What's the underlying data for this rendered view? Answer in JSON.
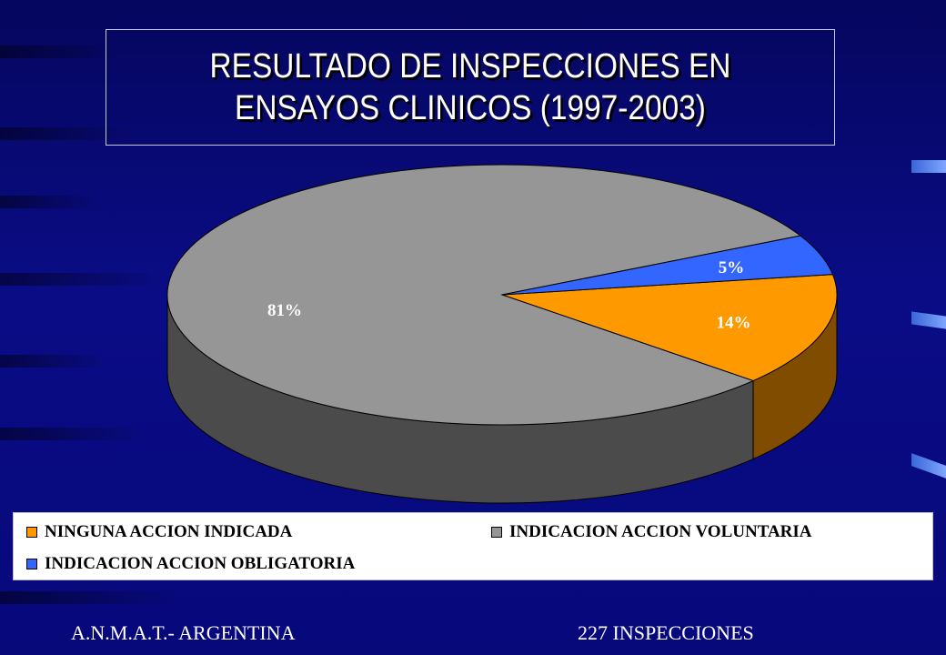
{
  "title": "RESULTADO DE INSPECCIONES EN ENSAYOS CLINICOS (1997-2003)",
  "chart_data": {
    "type": "pie",
    "title": "RESULTADO DE INSPECCIONES EN ENSAYOS CLINICOS (1997-2003)",
    "categories": [
      "NINGUNA ACCION INDICADA",
      "INDICACION ACCION VOLUNTARIA",
      "INDICACION ACCION OBLIGATORIA"
    ],
    "values": [
      14,
      81,
      5
    ],
    "labels": [
      "14%",
      "81%",
      "5%"
    ],
    "colors": [
      "#ff9900",
      "#969696",
      "#3366ff"
    ],
    "three_d": true,
    "legend_position": "bottom"
  },
  "legend": {
    "items": [
      {
        "label": "NINGUNA ACCION INDICADA",
        "color": "#ff9900"
      },
      {
        "label": "INDICACION ACCION VOLUNTARIA",
        "color": "#969696"
      },
      {
        "label": "INDICACION ACCION OBLIGATORIA",
        "color": "#3366ff"
      }
    ]
  },
  "footer": {
    "left": "A.N.M.A.T.- ARGENTINA",
    "right": "227 INSPECCIONES"
  }
}
